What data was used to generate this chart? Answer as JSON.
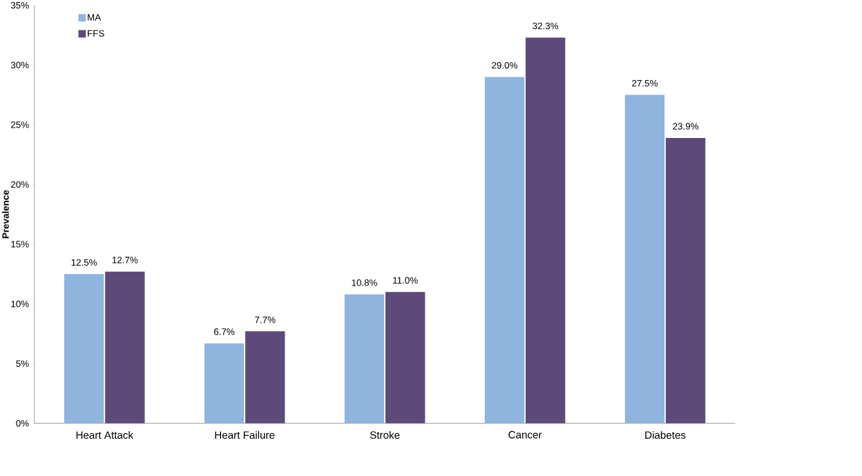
{
  "chart_data": {
    "type": "bar",
    "ylabel": "Prevalence",
    "categories": [
      "Heart Attack",
      "Heart Failure",
      "Stroke",
      "Cancer",
      "Diabetes"
    ],
    "series": [
      {
        "name": "MA",
        "color": "#8fb4de",
        "values": [
          12.5,
          6.7,
          10.8,
          29.0,
          27.5
        ],
        "value_labels": [
          "12.5%",
          "6.7%",
          "10.8%",
          "29.0%",
          "27.5%"
        ]
      },
      {
        "name": "FFS",
        "color": "#5e4a7a",
        "values": [
          12.7,
          7.7,
          11.0,
          32.3,
          23.9
        ],
        "value_labels": [
          "12.7%",
          "7.7%",
          "11.0%",
          "32.3%",
          "23.9%"
        ]
      }
    ],
    "ylim": [
      0,
      35
    ],
    "yticks": [
      {
        "value": 0,
        "label": "0%"
      },
      {
        "value": 5,
        "label": "5%"
      },
      {
        "value": 10,
        "label": "10%"
      },
      {
        "value": 15,
        "label": "15%"
      },
      {
        "value": 20,
        "label": "20%"
      },
      {
        "value": 25,
        "label": "25%"
      },
      {
        "value": 30,
        "label": "30%"
      },
      {
        "value": 35,
        "label": "35%"
      }
    ],
    "legend": "top left",
    "grid": false
  }
}
